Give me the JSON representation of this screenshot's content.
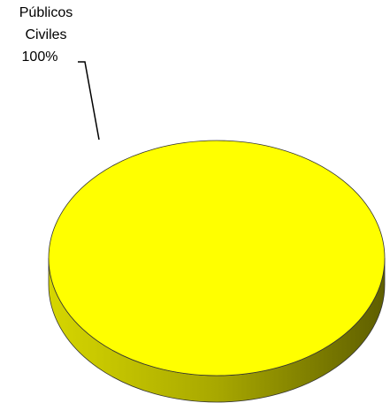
{
  "chart_data": {
    "type": "pie",
    "categories": [
      "Públicos Civiles"
    ],
    "values": [
      100
    ],
    "value_labels": [
      "100%"
    ],
    "colors": [
      "#ffff00"
    ]
  }
}
